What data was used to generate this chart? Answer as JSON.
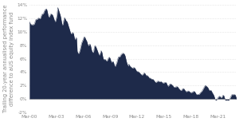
{
  "ylabel": "Trailing 20-year annualised performance\ndifference to aUS equity index fund",
  "ylabel_fontsize": 4.8,
  "background_color": "#ffffff",
  "fill_color": "#1e2a4a",
  "line_color": "#1e2a4a",
  "grid_color": "#cccccc",
  "grid_style": "dotted",
  "ylim": [
    -0.02,
    0.14
  ],
  "yticks": [
    -0.02,
    0.0,
    0.02,
    0.04,
    0.06,
    0.08,
    0.1,
    0.12,
    0.14
  ],
  "ytick_labels": [
    "-2%",
    "0%",
    "2%",
    "4%",
    "6%",
    "8%",
    "10%",
    "12%",
    "14%"
  ],
  "xtick_labels": [
    "Mar-00",
    "Mar-03",
    "Mar-06",
    "Mar-09",
    "Mar-12",
    "Mar-15",
    "Mar-18",
    "Mar-21"
  ],
  "xtick_years": [
    2000,
    2003,
    2006,
    2009,
    2012,
    2015,
    2018,
    2021
  ],
  "font_color": "#888888"
}
